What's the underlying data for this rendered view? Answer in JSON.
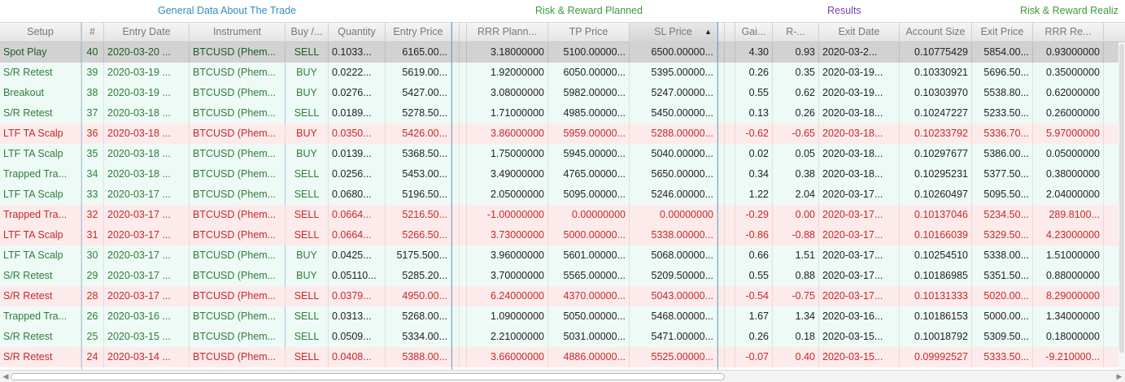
{
  "groups": {
    "general": "General Data About The Trade",
    "risk": "Risk & Reward Planned",
    "results": "Results",
    "realized": "Risk & Reward Realiz"
  },
  "headers": {
    "setup": "Setup",
    "num": "#",
    "entry_date": "Entry Date",
    "instrument": "Instrument",
    "buy": "Buy /...",
    "quantity": "Quantity",
    "entry_price": "Entry Price",
    "rrr_planned": "RRR Plann...",
    "tp_price": "TP Price",
    "sl_price": "SL Price",
    "gain": "Gai...",
    "r": "R-...",
    "exit_date": "Exit Date",
    "account_size": "Account Size",
    "exit_price": "Exit Price",
    "rrr_realized": "RRR Re..."
  },
  "sort_indicator": "▲",
  "rows": [
    {
      "status": "selected",
      "setup": "Spot Play",
      "num": "40",
      "entry_date": "2020-03-20 ...",
      "instrument": "BTCUSD (Phem...",
      "buy": "SELL",
      "quantity": "0.1033...",
      "entry_price": "6165.00...",
      "rrr_planned": "3.18000000",
      "tp_price": "5100.00000...",
      "sl_price": "6500.00000...",
      "gain": "4.30",
      "r": "0.93",
      "exit_date": "2020-03-2...",
      "account_size": "0.10775429",
      "exit_price": "5854.00...",
      "rrr_realized": "0.93000000"
    },
    {
      "status": "win",
      "setup": "S/R Retest",
      "num": "39",
      "entry_date": "2020-03-19 ...",
      "instrument": "BTCUSD (Phem...",
      "buy": "BUY",
      "quantity": "0.0222...",
      "entry_price": "5619.00...",
      "rrr_planned": "1.92000000",
      "tp_price": "6050.00000...",
      "sl_price": "5395.00000...",
      "gain": "0.26",
      "r": "0.35",
      "exit_date": "2020-03-19...",
      "account_size": "0.10330921",
      "exit_price": "5696.50...",
      "rrr_realized": "0.35000000"
    },
    {
      "status": "win",
      "setup": "Breakout",
      "num": "38",
      "entry_date": "2020-03-19 ...",
      "instrument": "BTCUSD (Phem...",
      "buy": "BUY",
      "quantity": "0.0276...",
      "entry_price": "5427.00...",
      "rrr_planned": "3.08000000",
      "tp_price": "5982.00000...",
      "sl_price": "5247.00000...",
      "gain": "0.55",
      "r": "0.62",
      "exit_date": "2020-03-19...",
      "account_size": "0.10303970",
      "exit_price": "5538.80...",
      "rrr_realized": "0.62000000"
    },
    {
      "status": "win",
      "setup": "S/R Retest",
      "num": "37",
      "entry_date": "2020-03-18 ...",
      "instrument": "BTCUSD (Phem...",
      "buy": "SELL",
      "quantity": "0.0189...",
      "entry_price": "5278.50...",
      "rrr_planned": "1.71000000",
      "tp_price": "4985.00000...",
      "sl_price": "5450.00000...",
      "gain": "0.13",
      "r": "0.26",
      "exit_date": "2020-03-18...",
      "account_size": "0.10247227",
      "exit_price": "5233.50...",
      "rrr_realized": "0.26000000"
    },
    {
      "status": "loss",
      "setup": "LTF TA Scalp",
      "num": "36",
      "entry_date": "2020-03-18 ...",
      "instrument": "BTCUSD (Phem...",
      "buy": "BUY",
      "quantity": "0.0350...",
      "entry_price": "5426.00...",
      "rrr_planned": "3.86000000",
      "tp_price": "5959.00000...",
      "sl_price": "5288.00000...",
      "gain": "-0.62",
      "r": "-0.65",
      "exit_date": "2020-03-18...",
      "account_size": "0.10233792",
      "exit_price": "5336.70...",
      "rrr_realized": "5.97000000"
    },
    {
      "status": "win",
      "setup": "LTF TA Scalp",
      "num": "35",
      "entry_date": "2020-03-18 ...",
      "instrument": "BTCUSD (Phem...",
      "buy": "BUY",
      "quantity": "0.0139...",
      "entry_price": "5368.50...",
      "rrr_planned": "1.75000000",
      "tp_price": "5945.00000...",
      "sl_price": "5040.00000...",
      "gain": "0.02",
      "r": "0.05",
      "exit_date": "2020-03-18...",
      "account_size": "0.10297677",
      "exit_price": "5386.00...",
      "rrr_realized": "0.05000000"
    },
    {
      "status": "win",
      "setup": "Trapped Tra...",
      "num": "34",
      "entry_date": "2020-03-18 ...",
      "instrument": "BTCUSD (Phem...",
      "buy": "SELL",
      "quantity": "0.0256...",
      "entry_price": "5453.00...",
      "rrr_planned": "3.49000000",
      "tp_price": "4765.00000...",
      "sl_price": "5650.00000...",
      "gain": "0.34",
      "r": "0.38",
      "exit_date": "2020-03-18...",
      "account_size": "0.10295231",
      "exit_price": "5377.50...",
      "rrr_realized": "0.38000000"
    },
    {
      "status": "win",
      "setup": "LTF TA Scalp",
      "num": "33",
      "entry_date": "2020-03-17 ...",
      "instrument": "BTCUSD (Phem...",
      "buy": "SELL",
      "quantity": "0.0680...",
      "entry_price": "5196.50...",
      "rrr_planned": "2.05000000",
      "tp_price": "5095.00000...",
      "sl_price": "5246.00000...",
      "gain": "1.22",
      "r": "2.04",
      "exit_date": "2020-03-17...",
      "account_size": "0.10260497",
      "exit_price": "5095.50...",
      "rrr_realized": "2.04000000"
    },
    {
      "status": "loss",
      "setup": "Trapped Tra...",
      "num": "32",
      "entry_date": "2020-03-17 ...",
      "instrument": "BTCUSD (Phem...",
      "buy": "SELL",
      "quantity": "0.0664...",
      "entry_price": "5216.50...",
      "rrr_planned": "-1.00000000",
      "tp_price": "0.00000000",
      "sl_price": "0.00000000",
      "gain": "-0.29",
      "r": "0.00",
      "exit_date": "2020-03-17...",
      "account_size": "0.10137046",
      "exit_price": "5234.50...",
      "rrr_realized": "289.8100..."
    },
    {
      "status": "loss",
      "setup": "LTF TA Scalp",
      "num": "31",
      "entry_date": "2020-03-17 ...",
      "instrument": "BTCUSD (Phem...",
      "buy": "SELL",
      "quantity": "0.0664...",
      "entry_price": "5266.50...",
      "rrr_planned": "3.73000000",
      "tp_price": "5000.00000...",
      "sl_price": "5338.00000...",
      "gain": "-0.86",
      "r": "-0.88",
      "exit_date": "2020-03-17...",
      "account_size": "0.10166039",
      "exit_price": "5329.50...",
      "rrr_realized": "4.23000000"
    },
    {
      "status": "win",
      "setup": "LTF TA Scalp",
      "num": "30",
      "entry_date": "2020-03-17 ...",
      "instrument": "BTCUSD (Phem...",
      "buy": "BUY",
      "quantity": "0.0425...",
      "entry_price": "5175.500...",
      "rrr_planned": "3.96000000",
      "tp_price": "5601.00000...",
      "sl_price": "5068.00000...",
      "gain": "0.66",
      "r": "1.51",
      "exit_date": "2020-03-17...",
      "account_size": "0.10254510",
      "exit_price": "5338.00...",
      "rrr_realized": "1.51000000"
    },
    {
      "status": "win",
      "setup": "S/R Retest",
      "num": "29",
      "entry_date": "2020-03-17 ...",
      "instrument": "BTCUSD (Phem...",
      "buy": "BUY",
      "quantity": "0.05110...",
      "entry_price": "5285.20...",
      "rrr_planned": "3.70000000",
      "tp_price": "5565.00000...",
      "sl_price": "5209.50000...",
      "gain": "0.55",
      "r": "0.88",
      "exit_date": "2020-03-17...",
      "account_size": "0.10186985",
      "exit_price": "5351.50...",
      "rrr_realized": "0.88000000"
    },
    {
      "status": "loss",
      "setup": "S/R Retest",
      "num": "28",
      "entry_date": "2020-03-17 ...",
      "instrument": "BTCUSD (Phem...",
      "buy": "SELL",
      "quantity": "0.0379...",
      "entry_price": "4950.00...",
      "rrr_planned": "6.24000000",
      "tp_price": "4370.00000...",
      "sl_price": "5043.00000...",
      "gain": "-0.54",
      "r": "-0.75",
      "exit_date": "2020-03-17...",
      "account_size": "0.10131333",
      "exit_price": "5020.00...",
      "rrr_realized": "8.29000000"
    },
    {
      "status": "win",
      "setup": "Trapped Tra...",
      "num": "26",
      "entry_date": "2020-03-16 ...",
      "instrument": "BTCUSD (Phem...",
      "buy": "SELL",
      "quantity": "0.0313...",
      "entry_price": "5268.00...",
      "rrr_planned": "1.09000000",
      "tp_price": "5050.00000...",
      "sl_price": "5468.00000...",
      "gain": "1.67",
      "r": "1.34",
      "exit_date": "2020-03-16...",
      "account_size": "0.10186153",
      "exit_price": "5000.00...",
      "rrr_realized": "1.34000000"
    },
    {
      "status": "win",
      "setup": "S/R Retest",
      "num": "25",
      "entry_date": "2020-03-15 ...",
      "instrument": "BTCUSD (Phem...",
      "buy": "SELL",
      "quantity": "0.0509...",
      "entry_price": "5334.00...",
      "rrr_planned": "2.21000000",
      "tp_price": "5031.00000...",
      "sl_price": "5471.00000...",
      "gain": "0.26",
      "r": "0.18",
      "exit_date": "2020-03-15...",
      "account_size": "0.10018792",
      "exit_price": "5309.50...",
      "rrr_realized": "0.18000000"
    },
    {
      "status": "loss",
      "setup": "S/R Retest",
      "num": "24",
      "entry_date": "2020-03-14 ...",
      "instrument": "BTCUSD (Phem...",
      "buy": "SELL",
      "quantity": "0.0408...",
      "entry_price": "5388.00...",
      "rrr_planned": "3.66000000",
      "tp_price": "4886.00000...",
      "sl_price": "5525.00000...",
      "gain": "-0.07",
      "r": "0.40",
      "exit_date": "2020-03-15...",
      "account_size": "0.09992527",
      "exit_price": "5333.50...",
      "rrr_realized": "-9.210000..."
    }
  ]
}
